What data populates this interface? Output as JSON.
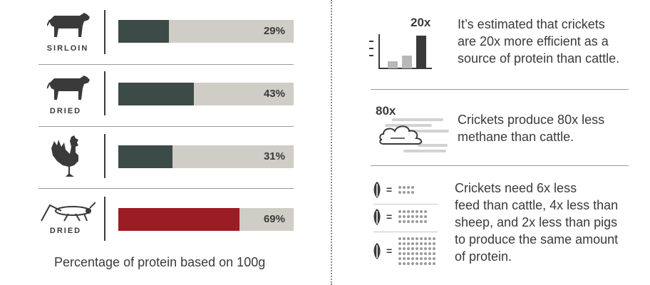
{
  "chart_data": {
    "type": "bar",
    "categories": [
      "SIRLOIN",
      "DRIED",
      "",
      "DRIED"
    ],
    "values": [
      29,
      43,
      31,
      69
    ],
    "value_labels": [
      "29%",
      "43%",
      "31%",
      "69%"
    ],
    "caption": "Percentage of protein based on 100g",
    "ylim": [
      0,
      100
    ],
    "colors": {
      "bar": "#3c4a48",
      "highlight": "#9b1c22",
      "track": "#cfcdc6"
    },
    "icons": [
      "cow-icon",
      "cow-icon",
      "rooster-icon",
      "cricket-icon"
    ]
  },
  "facts": {
    "efficiency": {
      "badge": "20x",
      "lines": [
        "It’s estimated that crickets",
        "are 20x more efficient as a",
        "source of protein than cattle."
      ]
    },
    "methane": {
      "badge": "80x",
      "lines": [
        "Crickets produce 80x less",
        "methane than cattle."
      ]
    },
    "feed": {
      "lines": [
        "Crickets need 6x less",
        "feed than cattle, 4x less than",
        "sheep, and 2x less than pigs",
        "to produce the same amount",
        "of protein."
      ],
      "equals": [
        "=",
        "=",
        "="
      ]
    }
  }
}
